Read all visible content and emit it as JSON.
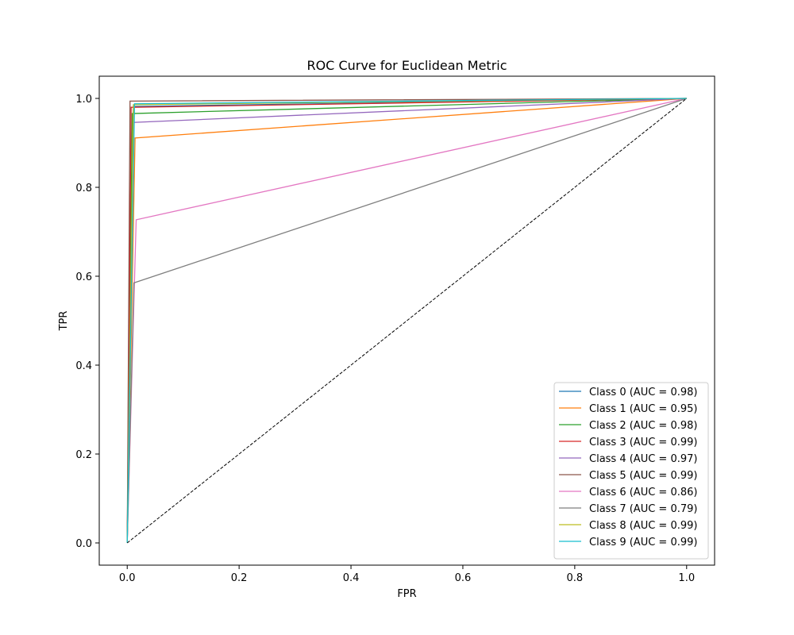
{
  "chart_data": {
    "type": "line",
    "title": "ROC Curve for Euclidean Metric",
    "xlabel": "FPR",
    "ylabel": "TPR",
    "xlim": [
      -0.05,
      1.05
    ],
    "ylim": [
      -0.05,
      1.05
    ],
    "xticks": [
      "0.0",
      "0.2",
      "0.4",
      "0.6",
      "0.8",
      "1.0"
    ],
    "yticks": [
      "0.0",
      "0.2",
      "0.4",
      "0.6",
      "0.8",
      "1.0"
    ],
    "grid": false,
    "legend_position": "lower-right",
    "series": [
      {
        "name": "Class 0 (AUC = 0.98)",
        "color": "#1f77b4",
        "x": [
          0,
          0.011,
          1
        ],
        "y": [
          0,
          0.982,
          1
        ]
      },
      {
        "name": "Class 1 (AUC = 0.95)",
        "color": "#ff7f0e",
        "x": [
          0,
          0.014,
          1
        ],
        "y": [
          0,
          0.911,
          1
        ]
      },
      {
        "name": "Class 2 (AUC = 0.98)",
        "color": "#2ca02c",
        "x": [
          0,
          0.009,
          1
        ],
        "y": [
          0,
          0.966,
          1
        ]
      },
      {
        "name": "Class 3 (AUC = 0.99)",
        "color": "#d62728",
        "x": [
          0,
          0.007,
          1
        ],
        "y": [
          0,
          0.98,
          1
        ]
      },
      {
        "name": "Class 4 (AUC = 0.97)",
        "color": "#9467bd",
        "x": [
          0,
          0.011,
          1
        ],
        "y": [
          0,
          0.946,
          1
        ]
      },
      {
        "name": "Class 5 (AUC = 0.99)",
        "color": "#8c564b",
        "x": [
          0,
          0.005,
          1
        ],
        "y": [
          0,
          0.994,
          1
        ]
      },
      {
        "name": "Class 6 (AUC = 0.86)",
        "color": "#e377c2",
        "x": [
          0,
          0.016,
          1
        ],
        "y": [
          0,
          0.727,
          1
        ]
      },
      {
        "name": "Class 7 (AUC = 0.79)",
        "color": "#7f7f7f",
        "x": [
          0,
          0.012,
          1
        ],
        "y": [
          0,
          0.585,
          1
        ]
      },
      {
        "name": "Class 8 (AUC = 0.99)",
        "color": "#bcbd22",
        "x": [
          0,
          0.011,
          1
        ],
        "y": [
          0,
          0.986,
          1
        ]
      },
      {
        "name": "Class 9 (AUC = 0.99)",
        "color": "#17becf",
        "x": [
          0,
          0.013,
          1
        ],
        "y": [
          0,
          0.988,
          1
        ]
      }
    ],
    "reference_line": {
      "color": "#000000",
      "style": "dashed",
      "x": [
        0,
        1
      ],
      "y": [
        0,
        1
      ]
    }
  }
}
